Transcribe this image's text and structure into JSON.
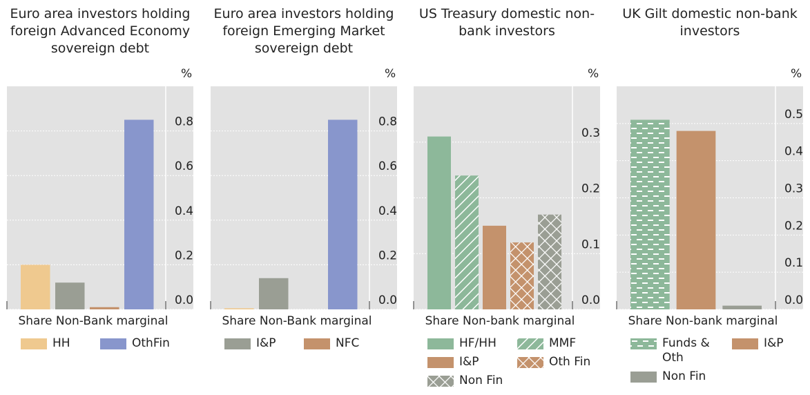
{
  "chart_data": [
    {
      "type": "bar",
      "title": "Euro area investors holding foreign Advanced Economy sovereign debt",
      "unit": "%",
      "xlabel": "Share Non-Bank marginal",
      "ylim": [
        0,
        1
      ],
      "yticks": [
        {
          "value": 0,
          "label": "0.0"
        },
        0.2,
        0.4,
        0.6,
        0.8
      ],
      "grid": true,
      "series": [
        {
          "name": "HH",
          "color": "#efc98f",
          "pattern": "solid",
          "in_legend": true,
          "values": [
            0.2
          ]
        },
        {
          "name": "I&P",
          "color": "#9a9e94",
          "pattern": "solid",
          "in_legend": false,
          "values": [
            0.12
          ]
        },
        {
          "name": "NFC",
          "color": "#c4926c",
          "pattern": "solid",
          "in_legend": false,
          "values": [
            0.01
          ]
        },
        {
          "name": "OthFin",
          "color": "#8896cc",
          "pattern": "solid",
          "in_legend": true,
          "values": [
            0.85
          ]
        }
      ]
    },
    {
      "type": "bar",
      "title": "Euro area investors holding foreign Emerging Market sovereign debt",
      "unit": "%",
      "xlabel": "Share Non-Bank marginal",
      "ylim": [
        0,
        1
      ],
      "yticks": [
        {
          "value": 0,
          "label": "0.0"
        },
        0.2,
        0.4,
        0.6,
        0.8
      ],
      "grid": true,
      "series": [
        {
          "name": "HH",
          "color": "#efc98f",
          "pattern": "solid",
          "in_legend": false,
          "values": [
            0.005
          ]
        },
        {
          "name": "I&P",
          "color": "#9a9e94",
          "pattern": "solid",
          "in_legend": true,
          "values": [
            0.14
          ]
        },
        {
          "name": "NFC",
          "color": "#c4926c",
          "pattern": "solid",
          "in_legend": true,
          "values": [
            0
          ]
        },
        {
          "name": "OthFin",
          "color": "#8896cc",
          "pattern": "solid",
          "in_legend": false,
          "values": [
            0.85
          ]
        }
      ]
    },
    {
      "type": "bar",
      "title": "US Treasury domestic non-bank investors",
      "unit": "%",
      "xlabel": "Share Non-bank marginal",
      "ylim": [
        0,
        0.4
      ],
      "yticks": [
        {
          "value": 0,
          "label": "0.0"
        },
        0.1,
        0.2,
        0.3
      ],
      "grid": true,
      "series": [
        {
          "name": "HF/HH",
          "color": "#8db89a",
          "pattern": "solid",
          "in_legend": true,
          "values": [
            0.31
          ]
        },
        {
          "name": "MMF",
          "color": "#8db89a",
          "pattern": "hatch",
          "in_legend": true,
          "values": [
            0.24
          ]
        },
        {
          "name": "I&P",
          "color": "#c4926c",
          "pattern": "solid",
          "in_legend": true,
          "values": [
            0.15
          ]
        },
        {
          "name": "Oth Fin",
          "color": "#c4926c",
          "pattern": "cross",
          "in_legend": true,
          "values": [
            0.12
          ]
        },
        {
          "name": "Non Fin",
          "color": "#9a9e94",
          "pattern": "cross",
          "in_legend": true,
          "values": [
            0.17
          ]
        }
      ]
    },
    {
      "type": "bar",
      "title": "UK Gilt domestic non-bank investors",
      "unit": "%",
      "xlabel": "Share Non-bank marginal",
      "ylim": [
        0,
        0.6
      ],
      "yticks": [
        {
          "value": 0,
          "label": "0.0"
        },
        0.1,
        0.2,
        0.3,
        0.4,
        0.5
      ],
      "grid": true,
      "series": [
        {
          "name": "Funds & Oth",
          "color": "#8db89a",
          "pattern": "dash",
          "in_legend": true,
          "values": [
            0.51
          ]
        },
        {
          "name": "I&P",
          "color": "#c4926c",
          "pattern": "solid",
          "in_legend": true,
          "values": [
            0.48
          ]
        },
        {
          "name": "Non Fin",
          "color": "#9a9e94",
          "pattern": "solid",
          "in_legend": true,
          "values": [
            0.01
          ]
        }
      ]
    }
  ]
}
